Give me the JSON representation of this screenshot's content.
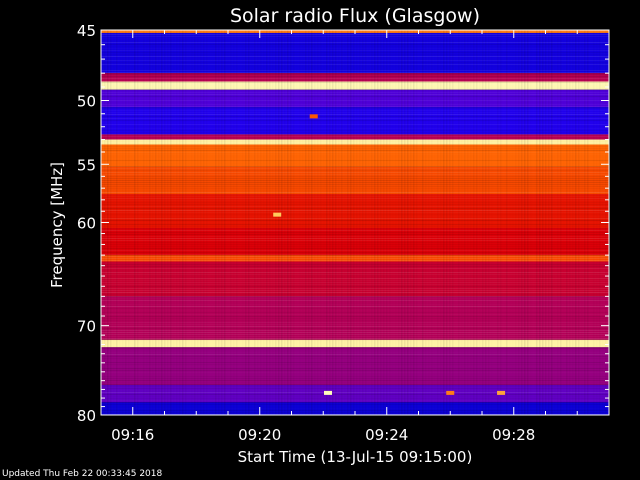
{
  "chart_data": {
    "type": "heatmap",
    "title": "Solar radio Flux (Glasgow)",
    "xlabel": "Start Time (13-Jul-15 09:15:00)",
    "ylabel": "Frequency [MHz]",
    "x_tick_labels": [
      "09:16",
      "09:20",
      "09:24",
      "09:28"
    ],
    "x_ticks_minutes": [
      16,
      20,
      24,
      28
    ],
    "xlim_minutes": [
      15,
      31
    ],
    "y_tick_labels": [
      "45",
      "50",
      "55",
      "60",
      "70",
      "80"
    ],
    "y_ticks_mhz": [
      45,
      50,
      55,
      60,
      70,
      80
    ],
    "ylim_mhz": [
      45,
      80
    ],
    "y_scale": "log",
    "colormap": [
      "#00004a",
      "#0000c8",
      "#3000ff",
      "#b00060",
      "#e00000",
      "#ff6000",
      "#ffd060",
      "#ffffc0"
    ],
    "bands": [
      {
        "f0": 44.7,
        "f1": 45.2,
        "level": 0.75
      },
      {
        "f0": 45.2,
        "f1": 48.0,
        "level": 0.2
      },
      {
        "f0": 48.0,
        "f1": 48.6,
        "level": 0.45
      },
      {
        "f0": 48.6,
        "f1": 49.2,
        "level": 0.98
      },
      {
        "f0": 49.2,
        "f1": 50.5,
        "level": 0.32
      },
      {
        "f0": 50.5,
        "f1": 52.6,
        "level": 0.24
      },
      {
        "f0": 52.6,
        "f1": 53.0,
        "level": 0.45
      },
      {
        "f0": 53.0,
        "f1": 53.4,
        "level": 0.95
      },
      {
        "f0": 53.4,
        "f1": 55.2,
        "level": 0.72
      },
      {
        "f0": 55.2,
        "f1": 57.5,
        "level": 0.68
      },
      {
        "f0": 57.5,
        "f1": 60.5,
        "level": 0.6
      },
      {
        "f0": 60.5,
        "f1": 63.0,
        "level": 0.56
      },
      {
        "f0": 63.0,
        "f1": 63.6,
        "level": 0.68
      },
      {
        "f0": 63.6,
        "f1": 67.0,
        "level": 0.5
      },
      {
        "f0": 67.0,
        "f1": 71.5,
        "level": 0.44
      },
      {
        "f0": 71.5,
        "f1": 72.3,
        "level": 0.96
      },
      {
        "f0": 72.3,
        "f1": 76.5,
        "level": 0.4
      },
      {
        "f0": 76.5,
        "f1": 78.5,
        "level": 0.34
      },
      {
        "f0": 78.5,
        "f1": 80.2,
        "level": 0.18
      }
    ],
    "bursts": [
      {
        "t": 20.55,
        "f": 59.3,
        "level": 0.85
      },
      {
        "t": 21.7,
        "f": 51.2,
        "level": 0.7
      },
      {
        "t": 22.15,
        "f": 77.4,
        "level": 0.99
      },
      {
        "t": 26.0,
        "f": 77.4,
        "level": 0.75
      },
      {
        "t": 27.6,
        "f": 77.4,
        "level": 0.8
      }
    ]
  },
  "footer": "Updated Thu Feb 22 00:33:45 2018"
}
